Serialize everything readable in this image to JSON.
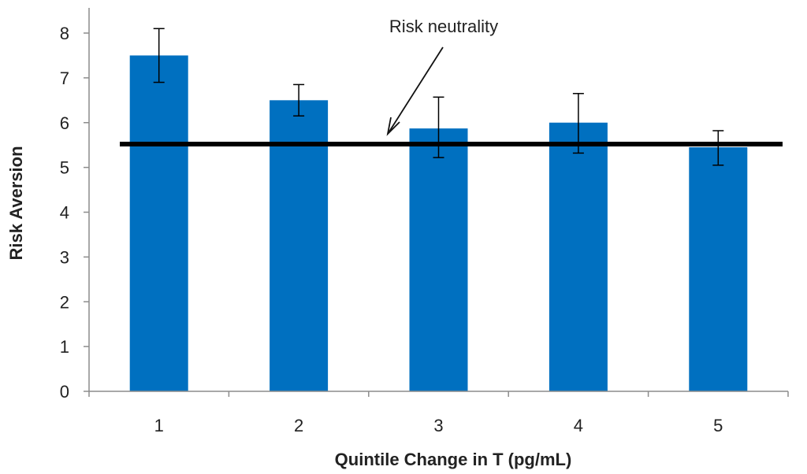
{
  "chart_data": {
    "type": "bar",
    "title": "",
    "xlabel": "Quintile Change in T (pg/mL)",
    "ylabel": "Risk Aversion",
    "categories": [
      "1",
      "2",
      "3",
      "4",
      "5"
    ],
    "values": [
      7.5,
      6.5,
      5.87,
      6.0,
      5.45
    ],
    "error_low": [
      6.9,
      6.15,
      5.22,
      5.32,
      5.05
    ],
    "error_high": [
      8.1,
      6.85,
      6.57,
      6.65,
      5.82
    ],
    "ylim": [
      0,
      8
    ],
    "yticks": [
      "0",
      "1",
      "2",
      "3",
      "4",
      "5",
      "6",
      "7",
      "8"
    ],
    "reference_line": {
      "value": 5.52,
      "label": "Risk neutrality"
    },
    "colors": {
      "bar": "#0070C0",
      "reference_line": "#000000",
      "error_bar": "#000000",
      "axis": "#8c8c8c"
    },
    "grid": false,
    "legend": "none"
  }
}
